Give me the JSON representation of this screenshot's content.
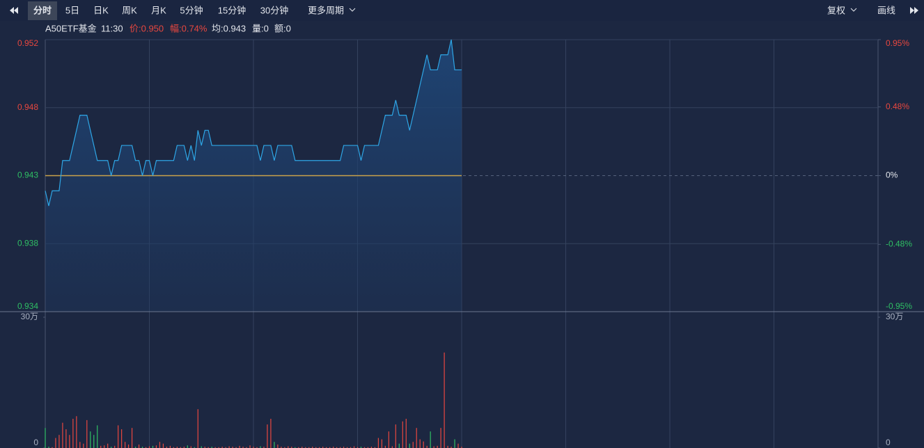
{
  "toolbar": {
    "tabs": [
      "分时",
      "5日",
      "日K",
      "周K",
      "月K",
      "5分钟",
      "15分钟",
      "30分钟"
    ],
    "active": 0,
    "more": "更多周期",
    "right": [
      "复权",
      "画线"
    ]
  },
  "info": {
    "name": "A50ETF基金",
    "time": "11:30",
    "price": "价:0.950",
    "change": "幅:0.74%",
    "avg": "均:0.943",
    "volume": "量:0",
    "amount": "额:0"
  },
  "chart_data": [
    {
      "type": "line",
      "color": "#2ea6e6",
      "grid": true,
      "up_color": "#e8473f",
      "down_color": "#2fbf64",
      "avg_color": "#c9a24a",
      "values": [
        0.942,
        0.941,
        0.942,
        0.942,
        0.942,
        0.944,
        0.944,
        0.944,
        0.945,
        0.946,
        0.947,
        0.947,
        0.947,
        0.946,
        0.945,
        0.944,
        0.944,
        0.944,
        0.944,
        0.943,
        0.944,
        0.944,
        0.945,
        0.945,
        0.945,
        0.945,
        0.944,
        0.944,
        0.943,
        0.944,
        0.944,
        0.943,
        0.944,
        0.944,
        0.944,
        0.944,
        0.944,
        0.944,
        0.945,
        0.945,
        0.945,
        0.944,
        0.945,
        0.944,
        0.946,
        0.945,
        0.946,
        0.946,
        0.945,
        0.945,
        0.945,
        0.945,
        0.945,
        0.945,
        0.945,
        0.945,
        0.945,
        0.945,
        0.945,
        0.945,
        0.945,
        0.945,
        0.944,
        0.945,
        0.945,
        0.945,
        0.944,
        0.945,
        0.945,
        0.945,
        0.945,
        0.945,
        0.944,
        0.944,
        0.944,
        0.944,
        0.944,
        0.944,
        0.944,
        0.944,
        0.944,
        0.944,
        0.944,
        0.944,
        0.944,
        0.944,
        0.945,
        0.945,
        0.945,
        0.945,
        0.945,
        0.944,
        0.945,
        0.945,
        0.945,
        0.945,
        0.945,
        0.946,
        0.947,
        0.947,
        0.947,
        0.948,
        0.947,
        0.947,
        0.947,
        0.946,
        0.947,
        0.948,
        0.949,
        0.95,
        0.951,
        0.95,
        0.95,
        0.95,
        0.951,
        0.951,
        0.951,
        0.952,
        0.95,
        0.95,
        0.95
      ],
      "ylim": [
        0.934,
        0.952
      ],
      "yticks": [
        0.934,
        {
          "value": 0.9385,
          "label": "0.938"
        },
        0.943,
        {
          "value": 0.9475,
          "label": "0.948"
        },
        0.952
      ],
      "y2lim": [
        -0.95,
        0.95
      ],
      "y2ticks": [
        {
          "value": -0.95,
          "label": "-0.95%"
        },
        {
          "value": -0.48,
          "label": "-0.48%"
        },
        {
          "value": 0,
          "label": "0%"
        },
        {
          "value": 0.48,
          "label": "0.48%"
        },
        {
          "value": 0.95,
          "label": "0.95%"
        }
      ]
    },
    {
      "type": "bar",
      "values": [
        46000,
        3000,
        2000,
        23000,
        30000,
        58000,
        43000,
        30000,
        67000,
        73000,
        14000,
        10000,
        64000,
        38000,
        30000,
        52000,
        5000,
        6000,
        10000,
        3000,
        5000,
        52000,
        43000,
        14000,
        8000,
        46000,
        3000,
        8000,
        3000,
        2000,
        4000,
        5000,
        6000,
        14000,
        10000,
        3000,
        5000,
        2000,
        3000,
        2000,
        3000,
        6000,
        4000,
        2000,
        89000,
        4000,
        3000,
        2000,
        3000,
        2000,
        2000,
        3000,
        2000,
        4000,
        3000,
        2000,
        5000,
        3000,
        2000,
        6000,
        3000,
        2000,
        4000,
        3000,
        54000,
        67000,
        14000,
        8000,
        3000,
        2000,
        4000,
        3000,
        2000,
        2000,
        3000,
        2000,
        2000,
        3000,
        2000,
        2000,
        3000,
        2000,
        2000,
        3000,
        2000,
        2000,
        3000,
        2000,
        2000,
        4000,
        2000,
        3000,
        2000,
        2000,
        3000,
        2000,
        23000,
        20000,
        5000,
        38000,
        4000,
        54000,
        10000,
        61000,
        67000,
        10000,
        14000,
        46000,
        20000,
        15000,
        5000,
        38000,
        4000,
        5000,
        46000,
        219000,
        5000,
        3000,
        20000,
        10000,
        3000
      ],
      "ylim": [
        0,
        300000
      ],
      "yticks": [
        0,
        {
          "value": 300000,
          "label": "30万"
        }
      ],
      "y2lim": [
        0,
        300000
      ],
      "y2ticks": [
        0,
        {
          "value": 300000,
          "label": "30万"
        }
      ]
    }
  ]
}
